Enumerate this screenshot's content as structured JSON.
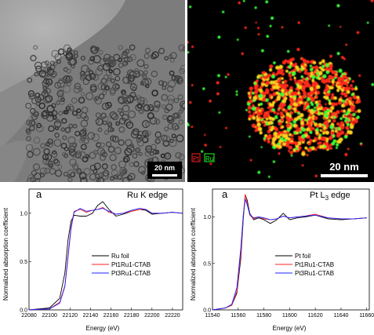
{
  "tem": {
    "scale_bar_label": "20 nm"
  },
  "eds": {
    "scale_bar_label": "20 nm",
    "legend": [
      {
        "label": "Pt",
        "color": "#ff2020"
      },
      {
        "label": "Ru",
        "color": "#20ff20"
      }
    ]
  },
  "chart_data": [
    {
      "type": "line",
      "panel_letter": "a",
      "edge_label": "Ru K edge",
      "xlabel": "Energy (eV)",
      "ylabel": "Normalized absorption coefficient",
      "xlim": [
        22080,
        22230
      ],
      "ylim": [
        0,
        1.25
      ],
      "x_ticks": [
        22080,
        22100,
        22120,
        22140,
        22160,
        22180,
        22200,
        22220
      ],
      "y_ticks": [
        0.0,
        0.5,
        1.0
      ],
      "legend_position": "lower-right",
      "series": [
        {
          "name": "Ru foil",
          "color": "#000000",
          "x": [
            22080,
            22100,
            22110,
            22115,
            22118,
            22121,
            22124,
            22130,
            22136,
            22142,
            22147,
            22152,
            22158,
            22165,
            22172,
            22180,
            22188,
            22194,
            22200,
            22210,
            22220,
            22230
          ],
          "y": [
            0.0,
            0.02,
            0.12,
            0.38,
            0.72,
            0.92,
            0.98,
            0.97,
            0.97,
            1.0,
            1.08,
            1.12,
            1.04,
            0.97,
            0.99,
            1.02,
            1.04,
            1.03,
            0.99,
            1.0,
            1.01,
            1.0
          ]
        },
        {
          "name": "Pt1Ru1-CTAB",
          "color": "#ff2020",
          "x": [
            22080,
            22100,
            22110,
            22115,
            22118,
            22121,
            22124,
            22130,
            22136,
            22142,
            22147,
            22152,
            22158,
            22165,
            22172,
            22180,
            22188,
            22194,
            22200,
            22210,
            22220,
            22230
          ],
          "y": [
            0.0,
            0.01,
            0.08,
            0.25,
            0.56,
            0.86,
            1.02,
            1.04,
            1.01,
            1.03,
            1.04,
            1.06,
            1.01,
            0.99,
            1.0,
            1.02,
            1.04,
            1.04,
            1.0,
            1.0,
            1.01,
            1.0
          ]
        },
        {
          "name": "Pt3Ru1-CTAB",
          "color": "#2020ff",
          "x": [
            22080,
            22100,
            22110,
            22115,
            22118,
            22121,
            22124,
            22130,
            22136,
            22142,
            22147,
            22152,
            22158,
            22165,
            22172,
            22180,
            22188,
            22194,
            22200,
            22210,
            22220,
            22230
          ],
          "y": [
            0.0,
            0.01,
            0.07,
            0.24,
            0.54,
            0.84,
            1.01,
            1.05,
            1.02,
            1.03,
            1.04,
            1.05,
            1.02,
            0.99,
            1.0,
            1.03,
            1.05,
            1.04,
            1.0,
            1.0,
            1.01,
            1.0
          ]
        }
      ]
    },
    {
      "type": "line",
      "panel_letter": "a",
      "edge_label_base": "Pt L",
      "edge_label_sub": "3",
      "edge_label_suffix": " edge",
      "xlabel": "Energy (eV)",
      "ylabel": "Normalized absorption coefficient",
      "xlim": [
        11540,
        11662
      ],
      "ylim": [
        0,
        1.3
      ],
      "x_ticks": [
        11540,
        11560,
        11580,
        11600,
        11620,
        11640,
        11660
      ],
      "y_ticks": [
        0.0,
        0.5,
        1.0
      ],
      "legend_position": "lower-right",
      "series": [
        {
          "name": "Pt foil",
          "color": "#000000",
          "x": [
            11540,
            11550,
            11555,
            11559,
            11562,
            11564,
            11565.5,
            11567,
            11569,
            11572,
            11576,
            11580,
            11585,
            11590,
            11595,
            11600,
            11606,
            11612,
            11620,
            11630,
            11640,
            11650,
            11660
          ],
          "y": [
            0.0,
            0.02,
            0.05,
            0.18,
            0.55,
            0.98,
            1.24,
            1.18,
            1.04,
            0.97,
            0.99,
            0.97,
            0.93,
            0.97,
            1.04,
            0.97,
            0.99,
            1.0,
            1.02,
            0.98,
            0.97,
            0.98,
            0.99
          ]
        },
        {
          "name": "Pt1Ru1-CTAB",
          "color": "#ff2020",
          "x": [
            11540,
            11550,
            11555,
            11559,
            11562,
            11564,
            11565.5,
            11567,
            11569,
            11572,
            11576,
            11580,
            11585,
            11590,
            11595,
            11600,
            11606,
            11612,
            11620,
            11630,
            11640,
            11650,
            11660
          ],
          "y": [
            0.0,
            0.02,
            0.05,
            0.2,
            0.6,
            1.02,
            1.24,
            1.15,
            1.02,
            0.98,
            1.0,
            0.98,
            0.97,
            0.98,
            1.01,
            0.99,
            1.0,
            1.01,
            1.03,
            0.99,
            0.98,
            0.98,
            0.99
          ]
        },
        {
          "name": "Pt3Ru1-CTAB",
          "color": "#2020ff",
          "x": [
            11540,
            11550,
            11555,
            11559,
            11562,
            11564,
            11565.5,
            11567,
            11569,
            11572,
            11576,
            11580,
            11585,
            11590,
            11595,
            11600,
            11606,
            11612,
            11620,
            11630,
            11640,
            11650,
            11660
          ],
          "y": [
            0.0,
            0.02,
            0.06,
            0.24,
            0.66,
            1.02,
            1.19,
            1.13,
            1.03,
            0.99,
            1.0,
            0.99,
            0.97,
            0.98,
            1.01,
            0.99,
            1.0,
            1.01,
            1.02,
            0.99,
            0.98,
            0.98,
            0.99
          ]
        }
      ]
    }
  ]
}
